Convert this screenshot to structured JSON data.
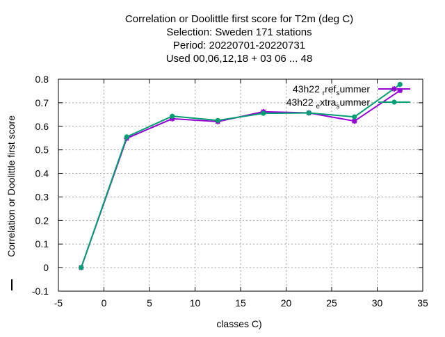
{
  "chart_data": {
    "type": "line",
    "title": [
      "Correlation or Doolittle first score  for T2m (deg C)",
      "Selection: Sweden    171 stations",
      "Period: 20220701-20220731",
      "Used  00,06,12,18  + 03 06 ... 48"
    ],
    "xlabel": "classes C)",
    "ylabel": "Correlation or Doolittle first score",
    "xlim": [
      -5,
      35
    ],
    "ylim": [
      -0.1,
      0.8
    ],
    "xticks": [
      -5,
      0,
      5,
      10,
      15,
      20,
      25,
      30,
      35
    ],
    "yticks": [
      -0.1,
      0,
      0.1,
      0.2,
      0.3,
      0.4,
      0.5,
      0.6,
      0.7,
      0.8
    ],
    "xtick_labels": [
      "-5",
      "0",
      "5",
      "10",
      "15",
      "20",
      "25",
      "30",
      "35"
    ],
    "ytick_labels": [
      "-0.1",
      "0",
      "0.1",
      "0.2",
      "0.3",
      "0.4",
      "0.5",
      "0.6",
      "0.7",
      "0.8"
    ],
    "grid": true,
    "legend_position": "top-right",
    "series": [
      {
        "name": "43h22_ref_summer",
        "legend_main": "43h22",
        "legend_parts": [
          {
            "text": "ref",
            "sub": "r"
          },
          {
            "text": "ummer",
            "sub": "s"
          }
        ],
        "color": "#9400d3",
        "marker": "asterisk",
        "x": [
          -2.5,
          2.5,
          7.5,
          12.5,
          17.5,
          22.5,
          27.5,
          32.5
        ],
        "y": [
          0.0,
          0.549,
          0.632,
          0.62,
          0.662,
          0.657,
          0.622,
          0.752
        ]
      },
      {
        "name": "43h22_extra_summer",
        "legend_main": "43h22",
        "legend_parts": [
          {
            "text": "xtra",
            "sub": "e"
          },
          {
            "text": "ummer",
            "sub": "s"
          }
        ],
        "color": "#009e73",
        "marker": "filled-circle",
        "x": [
          -2.5,
          2.5,
          7.5,
          12.5,
          17.5,
          22.5,
          27.5,
          32.5
        ],
        "y": [
          0.0,
          0.555,
          0.643,
          0.625,
          0.655,
          0.657,
          0.64,
          0.778
        ]
      }
    ]
  }
}
